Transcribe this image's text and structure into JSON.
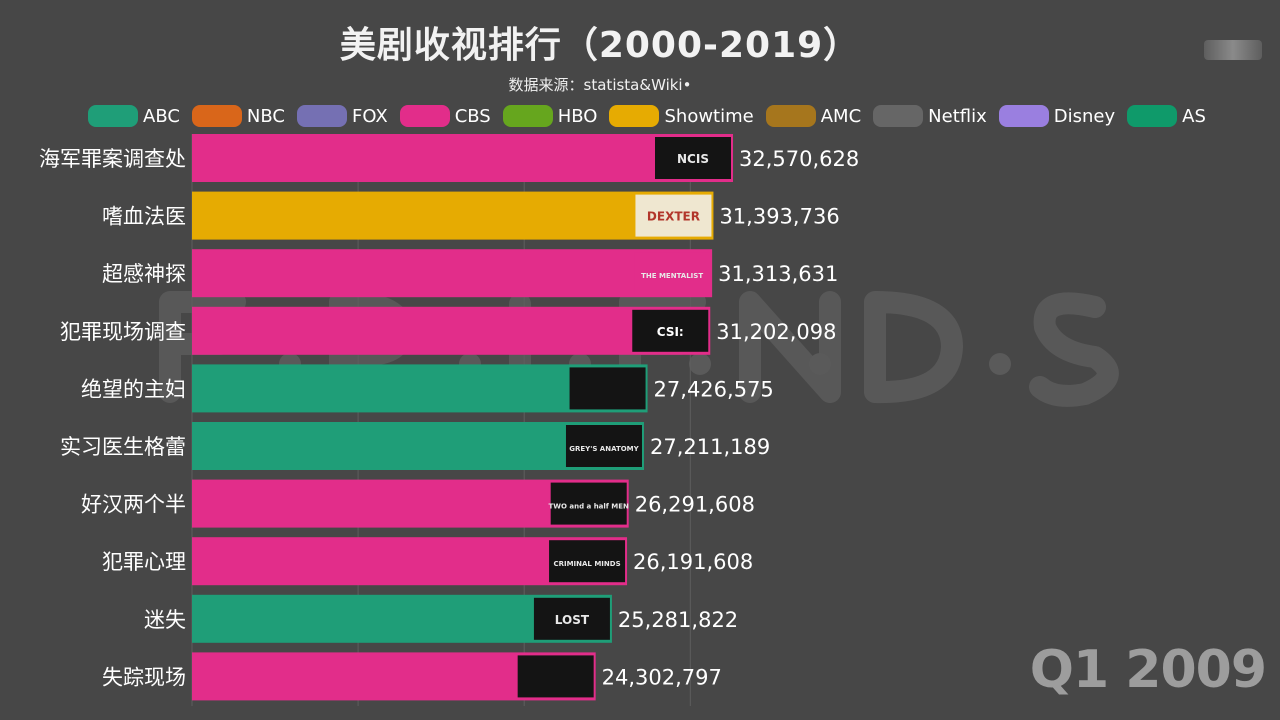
{
  "header": {
    "title": "美剧收视排行（2000-2019）",
    "subtitle": "数据来源：statista&Wiki•"
  },
  "legend": [
    {
      "label": "ABC",
      "color": "#1f9e78"
    },
    {
      "label": "NBC",
      "color": "#d9661a"
    },
    {
      "label": "FOX",
      "color": "#7570b3"
    },
    {
      "label": "CBS",
      "color": "#e22d8a"
    },
    {
      "label": "HBO",
      "color": "#66a61e"
    },
    {
      "label": "Showtime",
      "color": "#e6ab02"
    },
    {
      "label": "AMC",
      "color": "#a6761d"
    },
    {
      "label": "Netflix",
      "color": "#666666"
    },
    {
      "label": "Disney",
      "color": "#9a7fe0"
    },
    {
      "label": "AS",
      "color": "#0f9a6a"
    }
  ],
  "period": "Q1 2009",
  "chart_data": {
    "type": "bar",
    "orientation": "horizontal",
    "title": "美剧收视排行（2000-2019）",
    "categories": [
      "海军罪案调查处",
      "嗜血法医",
      "超感神探",
      "犯罪现场调查",
      "绝望的主妇",
      "实习医生格蕾",
      "好汉两个半",
      "犯罪心理",
      "迷失",
      "失踪现场"
    ],
    "values": [
      32570628,
      31393736,
      31313631,
      31202098,
      27426575,
      27211189,
      26291608,
      26191608,
      25281822,
      24302797
    ],
    "value_labels": [
      "32,570,628",
      "31,393,736",
      "31,313,631",
      "31,202,098",
      "27,426,575",
      "27,211,189",
      "26,291,608",
      "26,191,608",
      "25,281,822",
      "24,302,797"
    ],
    "networks": [
      "CBS",
      "Showtime",
      "CBS",
      "CBS",
      "ABC",
      "ABC",
      "CBS",
      "CBS",
      "ABC",
      "CBS"
    ],
    "show_logos": [
      "NCIS",
      "DEXTER",
      "THE MENTALIST",
      "CSI:",
      "",
      "GREY'S ANATOMY",
      "TWO and a half MEN",
      "CRIMINAL MINDS",
      "LOST",
      ""
    ],
    "xlim": [
      0,
      32570628
    ],
    "grid": true,
    "legend_position": "top"
  }
}
